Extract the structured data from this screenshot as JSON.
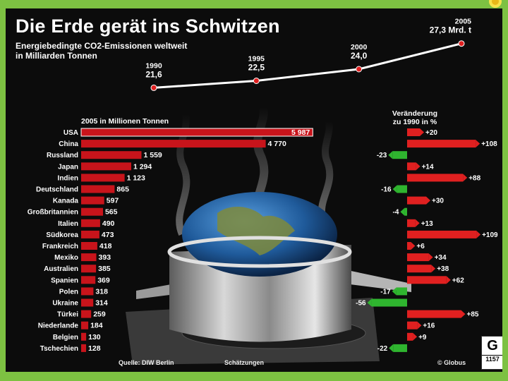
{
  "infographic": {
    "title": "Die Erde gerät ins Schwitzen",
    "subtitle_line1": "Energiebedingte CO2-Emissionen weltweit",
    "subtitle_line2": "in Milliarden Tonnen",
    "bars_header": "2005 in Millionen Tonnen",
    "change_header_line1": "Veränderung",
    "change_header_line2": "zu 1990 in %",
    "source": "Quelle: DIW Berlin",
    "estimates_note": "Schätzungen",
    "publisher": "© Globus",
    "logo_letter": "G",
    "logo_number": "1157",
    "colors": {
      "bar": "#c8141b",
      "positive": "#e02020",
      "negative": "#2fb52f",
      "background": "#0c0c0c",
      "slide": "#7dc142"
    }
  },
  "chart_data": [
    {
      "type": "line",
      "title": "Energiebedingte CO2-Emissionen weltweit in Milliarden Tonnen",
      "x": [
        "1990",
        "1995",
        "2000",
        "2005"
      ],
      "values": [
        21.6,
        22.5,
        24.0,
        27.3
      ],
      "labels": [
        "21,6",
        "22,5",
        "24,0",
        "27,3 Mrd. t"
      ],
      "ylim": [
        20,
        28
      ]
    },
    {
      "type": "bar",
      "orientation": "horizontal",
      "title": "2005 in Millionen Tonnen",
      "categories": [
        "USA",
        "China",
        "Russland",
        "Japan",
        "Indien",
        "Deutschland",
        "Kanada",
        "Großbritannien",
        "Italien",
        "Südkorea",
        "Frankreich",
        "Mexiko",
        "Australien",
        "Spanien",
        "Polen",
        "Ukraine",
        "Türkei",
        "Niederlande",
        "Belgien",
        "Tschechien"
      ],
      "values": [
        5987,
        4770,
        1559,
        1294,
        1123,
        865,
        597,
        565,
        490,
        473,
        418,
        393,
        385,
        369,
        318,
        314,
        259,
        184,
        130,
        128
      ],
      "labels": [
        "5 987",
        "4 770",
        "1 559",
        "1 294",
        "1 123",
        "865",
        "597",
        "565",
        "490",
        "473",
        "418",
        "393",
        "385",
        "369",
        "318",
        "314",
        "259",
        "184",
        "130",
        "128"
      ],
      "xlim": [
        0,
        6000
      ]
    },
    {
      "type": "bar",
      "orientation": "horizontal",
      "title": "Veränderung zu 1990 in %",
      "categories": [
        "USA",
        "China",
        "Russland",
        "Japan",
        "Indien",
        "Deutschland",
        "Kanada",
        "Großbritannien",
        "Italien",
        "Südkorea",
        "Frankreich",
        "Mexiko",
        "Australien",
        "Spanien",
        "Polen",
        "Ukraine",
        "Türkei",
        "Niederlande",
        "Belgien",
        "Tschechien"
      ],
      "values": [
        20,
        108,
        -23,
        14,
        88,
        -16,
        30,
        -4,
        13,
        109,
        6,
        34,
        38,
        62,
        -17,
        -56,
        85,
        16,
        9,
        -22
      ],
      "labels": [
        "+20",
        "+108",
        "-23",
        "+14",
        "+88",
        "-16",
        "+30",
        "-4",
        "+13",
        "+109",
        "+6",
        "+34",
        "+38",
        "+62",
        "-17",
        "-56",
        "+85",
        "+16",
        "+9",
        "-22"
      ]
    }
  ]
}
